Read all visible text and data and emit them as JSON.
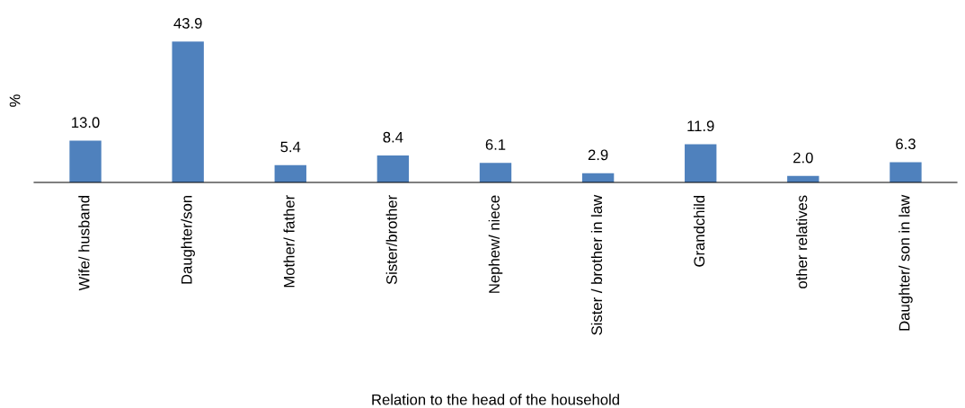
{
  "chart_data": {
    "type": "bar",
    "xlabel": "Relation to the head of the household",
    "ylabel": "%",
    "categories": [
      "Wife/ husband",
      "Daughter/son",
      "Mother/ father",
      "Sister/brother",
      "Nephew/ niece",
      "Sister / brother in law",
      "Grandchild",
      "other relatives",
      "Daughter/ son in law"
    ],
    "values": [
      13.0,
      43.9,
      5.4,
      8.4,
      6.1,
      2.9,
      11.9,
      2.0,
      6.3
    ],
    "value_labels": [
      "13.0",
      "43.9",
      "5.4",
      "8.4",
      "6.1",
      "2.9",
      "11.9",
      "2.0",
      "6.3"
    ],
    "color": "#4f81bd",
    "grid": false,
    "legend": false
  }
}
